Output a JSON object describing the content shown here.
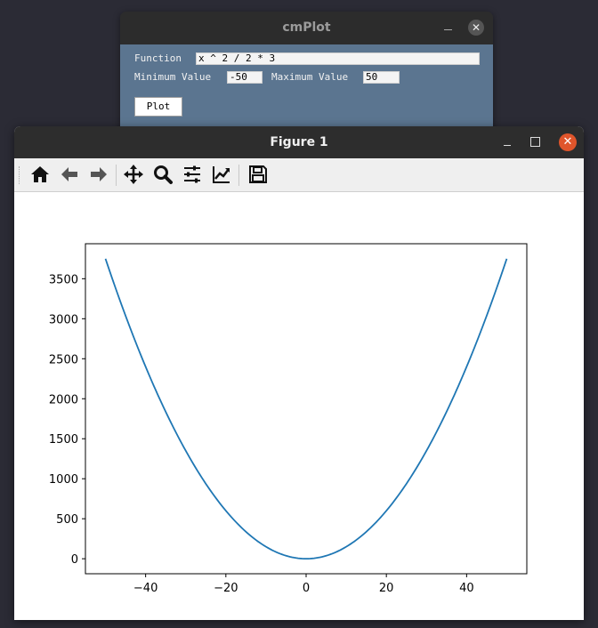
{
  "cmplot": {
    "title": "cmPlot",
    "function_label": "Function",
    "function_value": "x ^ 2 / 2 * 3",
    "min_label": "Minimum Value",
    "min_value": "-50",
    "max_label": "Maximum Value",
    "max_value": "50",
    "plot_button": "Plot",
    "minimize_glyph": "",
    "close_glyph": "✕"
  },
  "figure": {
    "title": "Figure 1",
    "close_glyph": "✕",
    "toolbar": [
      {
        "icon": "home-icon",
        "name": "home-button"
      },
      {
        "icon": "arrow-left-icon",
        "name": "back-button"
      },
      {
        "icon": "arrow-right-icon",
        "name": "forward-button"
      },
      {
        "icon": "move-icon",
        "name": "pan-button"
      },
      {
        "icon": "zoom-icon",
        "name": "zoom-button"
      },
      {
        "icon": "sliders-icon",
        "name": "configure-subplots-button"
      },
      {
        "icon": "chart-line-icon",
        "name": "edit-axis-button"
      },
      {
        "icon": "save-icon",
        "name": "save-button"
      }
    ]
  },
  "chart_data": {
    "type": "line",
    "function": "x ^ 2 / 2 * 3",
    "x_range": [
      -50,
      50
    ],
    "series": [
      {
        "color": "#1f77b4",
        "x": [
          -50,
          -40,
          -30,
          -20,
          -10,
          0,
          10,
          20,
          30,
          40,
          50
        ],
        "y": [
          3750,
          2400,
          1350,
          600,
          150,
          0,
          150,
          600,
          1350,
          2400,
          3750
        ]
      }
    ],
    "xlim": [
      -55,
      55
    ],
    "ylim": [
      -187.5,
      3937.5
    ],
    "xticks": [
      -40,
      -20,
      0,
      20,
      40
    ],
    "xtick_labels": [
      "−40",
      "−20",
      "0",
      "20",
      "40"
    ],
    "yticks": [
      0,
      500,
      1000,
      1500,
      2000,
      2500,
      3000,
      3500
    ],
    "ytick_labels": [
      "0",
      "500",
      "1000",
      "1500",
      "2000",
      "2500",
      "3000",
      "3500"
    ],
    "grid": false,
    "title": "",
    "xlabel": "",
    "ylabel": ""
  }
}
